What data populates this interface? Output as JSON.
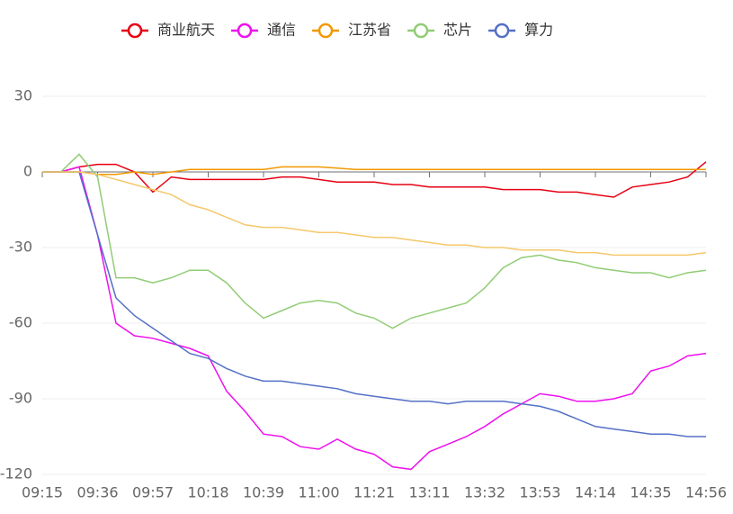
{
  "chart_data": {
    "type": "line",
    "categories": [
      "09:15",
      null,
      null,
      "09:36",
      null,
      null,
      "09:57",
      null,
      null,
      "10:18",
      null,
      null,
      "10:39",
      null,
      null,
      "11:00",
      null,
      null,
      "11:21",
      null,
      null,
      "13:11",
      null,
      null,
      "13:32",
      null,
      null,
      "13:53",
      null,
      null,
      "14:14",
      null,
      null,
      "14:35",
      null,
      null,
      "14:56"
    ],
    "ylim": [
      -120,
      30
    ],
    "yticks": [
      -120,
      -90,
      -60,
      -30,
      0,
      30
    ],
    "grid": true,
    "series": [
      {
        "name": "商业航天",
        "color": "#e60012",
        "values": [
          0,
          0,
          2,
          3,
          3,
          0,
          -8,
          -2,
          -3,
          -3,
          -3,
          -3,
          -3,
          -2,
          -2,
          -3,
          -4,
          -4,
          -4,
          -5,
          -5,
          -6,
          -6,
          -6,
          -6,
          -7,
          -7,
          -7,
          -8,
          -8,
          -9,
          -10,
          -6,
          -5,
          -4,
          -2,
          4
        ]
      },
      {
        "name": "通信",
        "color": "#ee10ee",
        "values": [
          0,
          0,
          2,
          -25,
          -60,
          -65,
          -66,
          -68,
          -70,
          -73,
          -87,
          -95,
          -104,
          -105,
          -109,
          -110,
          -106,
          -110,
          -112,
          -117,
          -118,
          -111,
          -108,
          -105,
          -101,
          -96,
          -92,
          -88,
          -89,
          -91,
          -91,
          -90,
          -88,
          -79,
          -77,
          -73,
          -72
        ]
      },
      {
        "name": "江苏省",
        "color": "#f39800",
        "values": [
          0,
          0,
          0,
          -1,
          -1,
          0,
          -1,
          0,
          1,
          1,
          1,
          1,
          1,
          2,
          2,
          2,
          1.5,
          1,
          1,
          1,
          1,
          1,
          1,
          1,
          1,
          1,
          1,
          1,
          1,
          1,
          1,
          1,
          1,
          1,
          1,
          1,
          1
        ]
      },
      {
        "name": "芯片",
        "color": "#91cc75",
        "values": [
          0,
          0,
          7,
          -2,
          -42,
          -42,
          -44,
          -42,
          -39,
          -39,
          -44,
          -52,
          -58,
          -55,
          -52,
          -51,
          -52,
          -56,
          -58,
          -62,
          -58,
          -56,
          -54,
          -52,
          -46,
          -38,
          -34,
          -33,
          -35,
          -36,
          -38,
          -39,
          -40,
          -40,
          -42,
          -40,
          -39
        ]
      },
      {
        "name": "算力",
        "color": "#5470c6",
        "values": [
          0,
          0,
          0,
          -25,
          -50,
          -57,
          -62,
          -67,
          -72,
          -74,
          -78,
          -81,
          -83,
          -83,
          -84,
          -85,
          -86,
          -88,
          -89,
          -90,
          -91,
          -91,
          -92,
          -91,
          -91,
          -91,
          -92,
          -93,
          -95,
          -98,
          -101,
          -102,
          -103,
          -104,
          -104,
          -105,
          -105
        ]
      },
      {
        "color": "#f5c86b",
        "values": [
          0,
          0,
          0,
          -1,
          -3,
          -5,
          -7,
          -9,
          -13,
          -15,
          -18,
          -21,
          -22,
          -22,
          -23,
          -24,
          -24,
          -25,
          -26,
          -26,
          -27,
          -28,
          -29,
          -29,
          -30,
          -30,
          -31,
          -31,
          -31,
          -32,
          -32,
          -33,
          -33,
          -33,
          -33,
          -33,
          -32
        ]
      }
    ]
  }
}
